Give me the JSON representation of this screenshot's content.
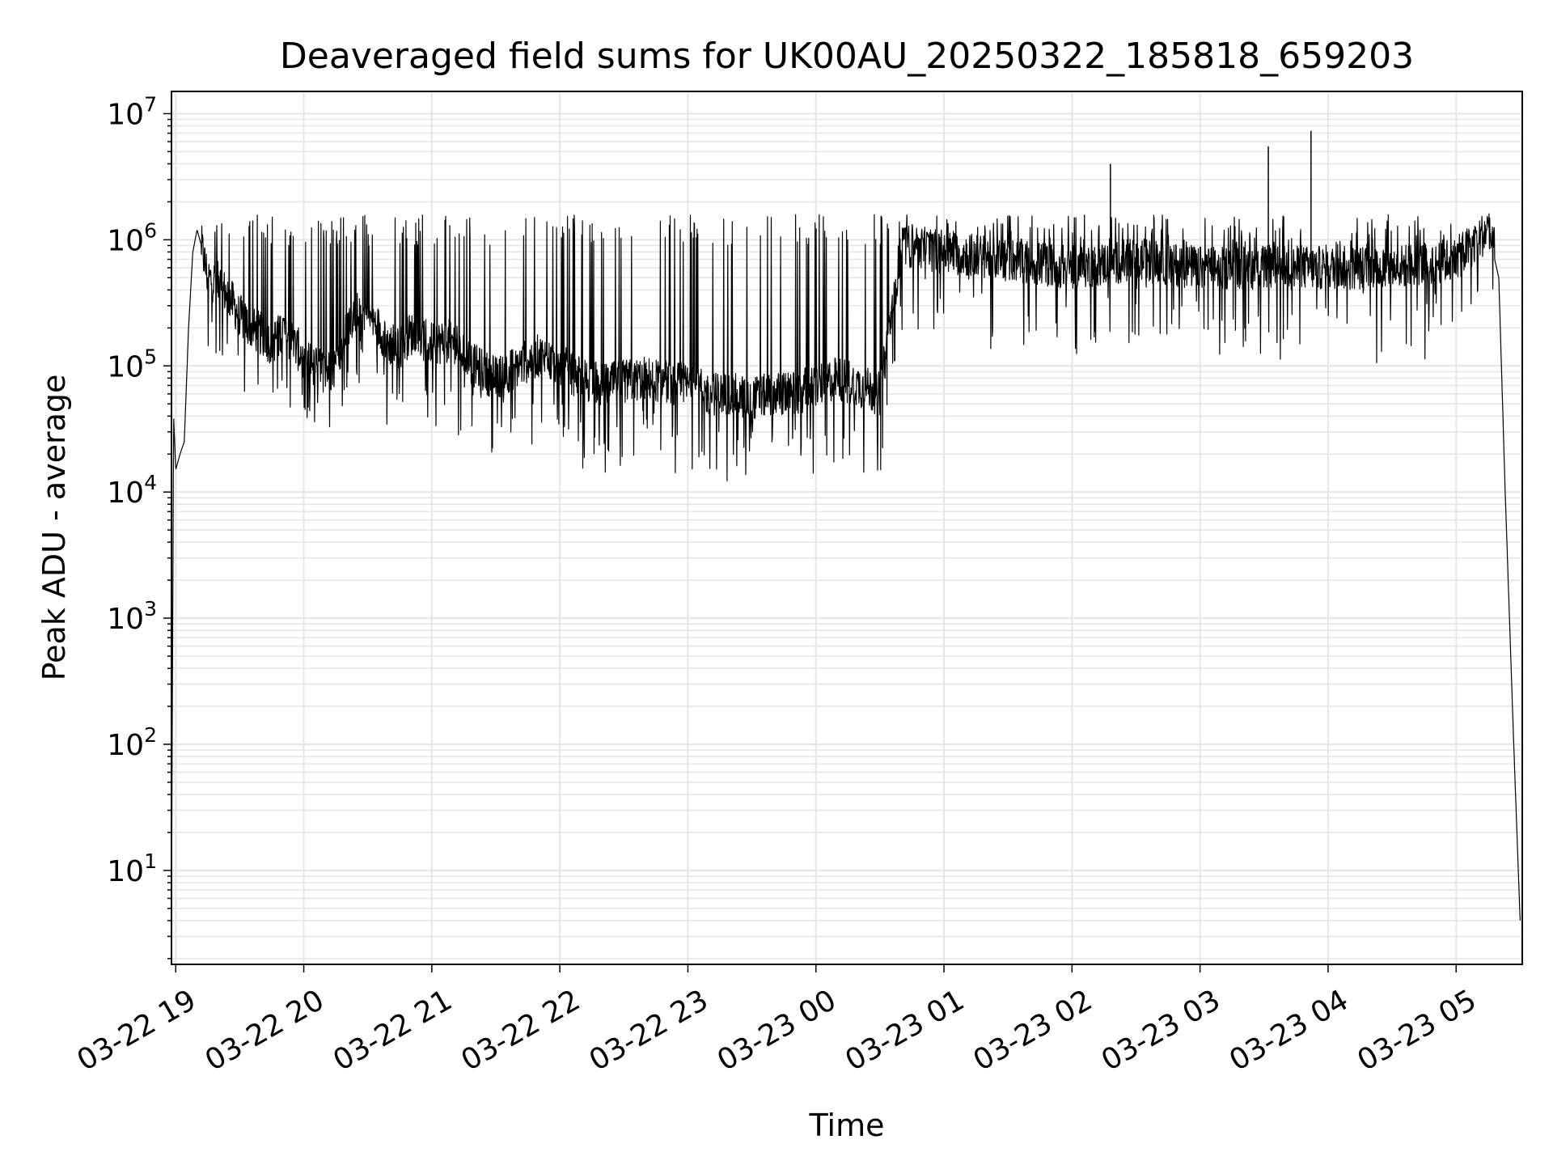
{
  "chart_data": {
    "type": "line",
    "title": "Deaveraged field sums for UK00AU_20250322_185818_659203",
    "xlabel": "Time",
    "ylabel": "Peak ADU - average",
    "yscale": "log",
    "ylim": [
      1.8,
      15000000
    ],
    "xlim": [
      "2025-03-22 18:58",
      "2025-03-23 05:31"
    ],
    "grid": true,
    "line_color": "#000000",
    "grid_color": "#e6e6e6",
    "x_ticks": [
      {
        "t": "2025-03-22 19:00",
        "label": "03-22 19"
      },
      {
        "t": "2025-03-22 20:00",
        "label": "03-22 20"
      },
      {
        "t": "2025-03-22 21:00",
        "label": "03-22 21"
      },
      {
        "t": "2025-03-22 22:00",
        "label": "03-22 22"
      },
      {
        "t": "2025-03-22 23:00",
        "label": "03-22 23"
      },
      {
        "t": "2025-03-23 00:00",
        "label": "03-23 00"
      },
      {
        "t": "2025-03-23 01:00",
        "label": "03-23 01"
      },
      {
        "t": "2025-03-23 02:00",
        "label": "03-23 02"
      },
      {
        "t": "2025-03-23 03:00",
        "label": "03-23 03"
      },
      {
        "t": "2025-03-23 04:00",
        "label": "03-23 04"
      },
      {
        "t": "2025-03-23 05:00",
        "label": "03-23 05"
      }
    ],
    "y_ticks": [
      {
        "v": 10,
        "base": "10",
        "exp": "1"
      },
      {
        "v": 100,
        "base": "10",
        "exp": "2"
      },
      {
        "v": 1000,
        "base": "10",
        "exp": "3"
      },
      {
        "v": 10000,
        "base": "10",
        "exp": "4"
      },
      {
        "v": 100000,
        "base": "10",
        "exp": "5"
      },
      {
        "v": 1000000,
        "base": "10",
        "exp": "6"
      },
      {
        "v": 10000000,
        "base": "10",
        "exp": "7"
      }
    ],
    "series": [
      {
        "points": [
          [
            "2025-03-22 18:58",
            5
          ],
          [
            "2025-03-22 18:59",
            40000
          ],
          [
            "2025-03-22 19:00",
            15000
          ],
          [
            "2025-03-22 19:02",
            20000
          ],
          [
            "2025-03-22 19:04",
            25000
          ],
          [
            "2025-03-22 19:06",
            200000
          ],
          [
            "2025-03-22 19:08",
            800000
          ],
          [
            "2025-03-22 19:10",
            1200000
          ],
          [
            "2025-03-22 19:12",
            900000
          ],
          [
            "2025-03-22 19:15",
            500000
          ],
          [
            "2025-03-22 19:20",
            450000
          ],
          [
            "2025-03-22 19:25",
            350000
          ],
          [
            "2025-03-22 19:30",
            250000
          ],
          [
            "2025-03-22 19:35",
            200000
          ],
          [
            "2025-03-22 19:40",
            180000
          ],
          [
            "2025-03-22 19:45",
            150000
          ],
          [
            "2025-03-22 19:50",
            200000
          ],
          [
            "2025-03-22 19:55",
            150000
          ],
          [
            "2025-03-22 20:00",
            120000
          ],
          [
            "2025-03-22 20:05",
            100000
          ],
          [
            "2025-03-22 20:10",
            90000
          ],
          [
            "2025-03-22 20:15",
            100000
          ],
          [
            "2025-03-22 20:20",
            200000
          ],
          [
            "2025-03-22 20:25",
            300000
          ],
          [
            "2025-03-22 20:30",
            250000
          ],
          [
            "2025-03-22 20:35",
            200000
          ],
          [
            "2025-03-22 20:40",
            150000
          ],
          [
            "2025-03-22 20:45",
            140000
          ],
          [
            "2025-03-22 20:50",
            180000
          ],
          [
            "2025-03-22 21:00",
            150000
          ],
          [
            "2025-03-22 21:10",
            160000
          ],
          [
            "2025-03-22 21:20",
            100000
          ],
          [
            "2025-03-22 21:30",
            80000
          ],
          [
            "2025-03-22 21:40",
            100000
          ],
          [
            "2025-03-22 21:50",
            120000
          ],
          [
            "2025-03-22 22:00",
            100000
          ],
          [
            "2025-03-22 22:10",
            80000
          ],
          [
            "2025-03-22 22:20",
            70000
          ],
          [
            "2025-03-22 22:30",
            75000
          ],
          [
            "2025-03-22 22:40",
            80000
          ],
          [
            "2025-03-22 22:50",
            75000
          ],
          [
            "2025-03-22 23:00",
            70000
          ],
          [
            "2025-03-22 23:10",
            60000
          ],
          [
            "2025-03-22 23:20",
            60000
          ],
          [
            "2025-03-22 23:30",
            55000
          ],
          [
            "2025-03-22 23:40",
            60000
          ],
          [
            "2025-03-22 23:50",
            60000
          ],
          [
            "2025-03-23 00:00",
            70000
          ],
          [
            "2025-03-23 00:10",
            80000
          ],
          [
            "2025-03-23 00:20",
            70000
          ],
          [
            "2025-03-23 00:30",
            60000
          ],
          [
            "2025-03-23 00:40",
            900000
          ],
          [
            "2025-03-23 01:00",
            800000
          ],
          [
            "2025-03-23 01:30",
            700000
          ],
          [
            "2025-03-23 02:00",
            600000
          ],
          [
            "2025-03-23 02:30",
            700000
          ],
          [
            "2025-03-23 03:00",
            600000
          ],
          [
            "2025-03-23 03:30",
            600000
          ],
          [
            "2025-03-23 04:00",
            600000
          ],
          [
            "2025-03-23 04:30",
            600000
          ],
          [
            "2025-03-23 05:00",
            700000
          ],
          [
            "2025-03-23 05:10",
            1000000
          ],
          [
            "2025-03-23 05:15",
            1200000
          ],
          [
            "2025-03-23 05:20",
            500000
          ],
          [
            "2025-03-23 05:23",
            10000
          ],
          [
            "2025-03-23 05:25",
            1000
          ],
          [
            "2025-03-23 05:27",
            100
          ],
          [
            "2025-03-23 05:30",
            4
          ]
        ],
        "spikes": [
          [
            "2025-03-23 02:18",
            4000000
          ],
          [
            "2025-03-23 03:32",
            5500000
          ],
          [
            "2025-03-23 03:52",
            7300000
          ]
        ]
      }
    ]
  }
}
